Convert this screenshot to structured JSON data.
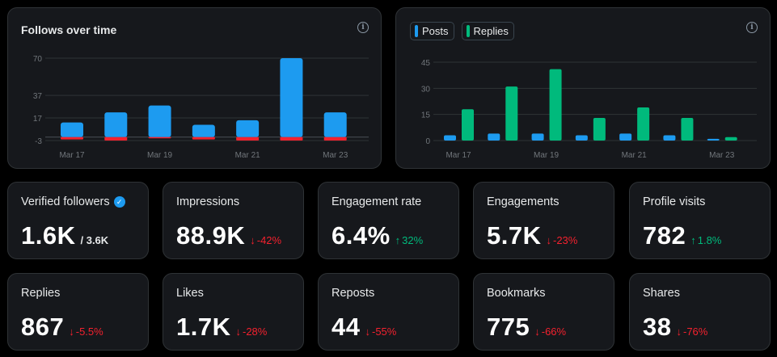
{
  "follows_chart": {
    "title": "Follows over time",
    "info_icon": "info-icon",
    "colors": {
      "positive": "#1d9bf0",
      "negative": "#f4212e",
      "grid": "#2f3336",
      "axis": "#71767b"
    }
  },
  "posts_chart": {
    "info_icon": "info-icon",
    "legend": [
      {
        "label": "Posts",
        "color": "#1d9bf0"
      },
      {
        "label": "Replies",
        "color": "#00ba7c"
      }
    ]
  },
  "chart_data": [
    {
      "type": "bar",
      "title": "Follows over time",
      "categories": [
        "Mar 17",
        "Mar 18",
        "Mar 19",
        "Mar 20",
        "Mar 21",
        "Mar 22",
        "Mar 23"
      ],
      "x_tick_labels": [
        "Mar 17",
        "Mar 19",
        "Mar 21",
        "Mar 23"
      ],
      "y_ticks": [
        70,
        37,
        17,
        -3
      ],
      "ylim": [
        -3,
        70
      ],
      "series": [
        {
          "name": "",
          "values": [
            13,
            22,
            28,
            11,
            15,
            70,
            22
          ]
        },
        {
          "name": "",
          "values": [
            -2,
            -3,
            -1,
            -2,
            -3,
            -3,
            -3
          ]
        }
      ],
      "grid": true
    },
    {
      "type": "bar",
      "categories": [
        "Mar 17",
        "Mar 18",
        "Mar 19",
        "Mar 20",
        "Mar 21",
        "Mar 22",
        "Mar 23"
      ],
      "x_tick_labels": [
        "Mar 17",
        "Mar 19",
        "Mar 21",
        "Mar 23"
      ],
      "y_ticks": [
        45,
        30,
        15,
        0
      ],
      "ylim": [
        0,
        45
      ],
      "series": [
        {
          "name": "Posts",
          "values": [
            3,
            4,
            4,
            3,
            4,
            3,
            1
          ]
        },
        {
          "name": "Replies",
          "values": [
            18,
            31,
            41,
            13,
            19,
            13,
            2
          ]
        }
      ],
      "grid": true,
      "legend": "top-left"
    }
  ],
  "stats": [
    {
      "label": "Verified followers",
      "value": "1.6K",
      "sub": "/ 3.6K",
      "verified": true
    },
    {
      "label": "Impressions",
      "value": "88.9K",
      "change": "-42%",
      "direction": "down"
    },
    {
      "label": "Engagement rate",
      "value": "6.4%",
      "change": "32%",
      "direction": "up"
    },
    {
      "label": "Engagements",
      "value": "5.7K",
      "change": "-23%",
      "direction": "down"
    },
    {
      "label": "Profile visits",
      "value": "782",
      "change": "1.8%",
      "direction": "up"
    },
    {
      "label": "Replies",
      "value": "867",
      "change": "-5.5%",
      "direction": "down"
    },
    {
      "label": "Likes",
      "value": "1.7K",
      "change": "-28%",
      "direction": "down"
    },
    {
      "label": "Reposts",
      "value": "44",
      "change": "-55%",
      "direction": "down"
    },
    {
      "label": "Bookmarks",
      "value": "775",
      "change": "-66%",
      "direction": "down"
    },
    {
      "label": "Shares",
      "value": "38",
      "change": "-76%",
      "direction": "down"
    }
  ]
}
